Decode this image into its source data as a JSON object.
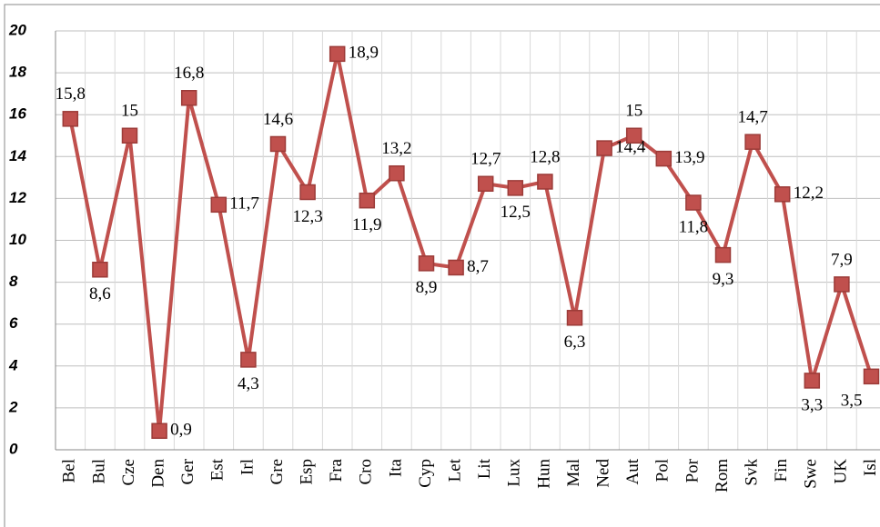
{
  "chart_data": {
    "type": "line",
    "categories": [
      "Bel",
      "Bul",
      "Cze",
      "Den",
      "Ger",
      "Est",
      "Irl",
      "Gre",
      "Esp",
      "Fra",
      "Cro",
      "Ita",
      "Cyp",
      "Let",
      "Lit",
      "Lux",
      "Hun",
      "Mal",
      "Ned",
      "Aut",
      "Pol",
      "Por",
      "Rom",
      "Svk",
      "Fin",
      "Swe",
      "UK",
      "Isl"
    ],
    "values": [
      15.8,
      8.6,
      15,
      0.9,
      16.8,
      11.7,
      4.3,
      14.6,
      12.3,
      18.9,
      11.9,
      13.2,
      8.9,
      8.7,
      12.7,
      12.5,
      12.8,
      6.3,
      14.4,
      15,
      13.9,
      11.8,
      9.3,
      14.7,
      12.2,
      3.3,
      7.9,
      3.5
    ],
    "value_labels": [
      "15,8",
      "8,6",
      "15",
      "0,9",
      "16,8",
      "11,7",
      "4,3",
      "14,6",
      "12,3",
      "18,9",
      "11,9",
      "13,2",
      "8,9",
      "8,7",
      "12,7",
      "12,5",
      "12,8",
      "6,3",
      "14,4",
      "15",
      "13,9",
      "11,8",
      "9,3",
      "14,7",
      "12,2",
      "3,3",
      "7,9",
      "3,5"
    ],
    "color": "#c0504d",
    "ylim": [
      0,
      20
    ],
    "yticks": [
      0,
      2,
      4,
      6,
      8,
      10,
      12,
      14,
      16,
      18,
      20
    ],
    "grid": true
  }
}
